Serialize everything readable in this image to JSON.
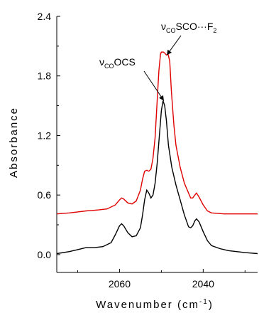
{
  "chart_data": {
    "type": "line",
    "xlabel_prefix": "Wavenumber (cm",
    "xlabel_exp": "-1",
    "xlabel_suffix": ")",
    "ylabel": "Absorbance",
    "xlim": [
      2075,
      2027
    ],
    "ylim": [
      -0.18,
      2.4
    ],
    "x_ticks": [
      2060,
      2040
    ],
    "y_ticks": [
      0.0,
      0.6,
      1.2,
      1.8,
      2.4
    ],
    "y_tick_labels": [
      "0.0",
      "0.6",
      "1.2",
      "1.8",
      "2.4"
    ],
    "x_tick_labels": [
      "2060",
      "2040"
    ],
    "series": [
      {
        "color": "#000000",
        "points": [
          [
            2075,
            0.01
          ],
          [
            2072,
            0.03
          ],
          [
            2070,
            0.05
          ],
          [
            2068,
            0.07
          ],
          [
            2066,
            0.07
          ],
          [
            2064,
            0.08
          ],
          [
            2062,
            0.12
          ],
          [
            2061,
            0.2
          ],
          [
            2060,
            0.29
          ],
          [
            2059.5,
            0.31
          ],
          [
            2059,
            0.29
          ],
          [
            2058,
            0.22
          ],
          [
            2057,
            0.18
          ],
          [
            2056,
            0.19
          ],
          [
            2055,
            0.27
          ],
          [
            2054.5,
            0.4
          ],
          [
            2054,
            0.55
          ],
          [
            2053.5,
            0.65
          ],
          [
            2053,
            0.62
          ],
          [
            2052.5,
            0.57
          ],
          [
            2052,
            0.6
          ],
          [
            2051.5,
            0.72
          ],
          [
            2051,
            0.92
          ],
          [
            2050.5,
            1.18
          ],
          [
            2050,
            1.45
          ],
          [
            2049.6,
            1.55
          ],
          [
            2049.2,
            1.5
          ],
          [
            2048.8,
            1.35
          ],
          [
            2048.3,
            1.1
          ],
          [
            2047.5,
            0.88
          ],
          [
            2046.5,
            0.7
          ],
          [
            2045.5,
            0.55
          ],
          [
            2044.5,
            0.4
          ],
          [
            2043.5,
            0.28
          ],
          [
            2043,
            0.27
          ],
          [
            2042.5,
            0.29
          ],
          [
            2042,
            0.34
          ],
          [
            2041.6,
            0.36
          ],
          [
            2041,
            0.33
          ],
          [
            2040,
            0.23
          ],
          [
            2039,
            0.14
          ],
          [
            2038,
            0.09
          ],
          [
            2036,
            0.06
          ],
          [
            2034,
            0.04
          ],
          [
            2030,
            0.02
          ],
          [
            2027,
            0.01
          ]
        ]
      },
      {
        "color": "#e00000",
        "points": [
          [
            2075,
            0.41
          ],
          [
            2072,
            0.42
          ],
          [
            2070,
            0.43
          ],
          [
            2068,
            0.44
          ],
          [
            2065,
            0.45
          ],
          [
            2063,
            0.46
          ],
          [
            2061,
            0.5
          ],
          [
            2060,
            0.55
          ],
          [
            2059.5,
            0.57
          ],
          [
            2059,
            0.56
          ],
          [
            2058,
            0.52
          ],
          [
            2057,
            0.51
          ],
          [
            2056,
            0.54
          ],
          [
            2055,
            0.65
          ],
          [
            2054.5,
            0.76
          ],
          [
            2054,
            0.84
          ],
          [
            2053.5,
            0.85
          ],
          [
            2053,
            0.84
          ],
          [
            2052.5,
            0.86
          ],
          [
            2052,
            0.97
          ],
          [
            2051.5,
            1.18
          ],
          [
            2051,
            1.55
          ],
          [
            2050.6,
            1.85
          ],
          [
            2050.2,
            2.02
          ],
          [
            2050,
            2.04
          ],
          [
            2049.5,
            2.04
          ],
          [
            2049.2,
            2.03
          ],
          [
            2048.8,
            2.01
          ],
          [
            2048.4,
            2.02
          ],
          [
            2048,
            1.95
          ],
          [
            2047.6,
            1.65
          ],
          [
            2047,
            1.3
          ],
          [
            2046.5,
            1.1
          ],
          [
            2045.5,
            0.88
          ],
          [
            2044.5,
            0.72
          ],
          [
            2043.5,
            0.62
          ],
          [
            2043,
            0.57
          ],
          [
            2042.5,
            0.57
          ],
          [
            2042,
            0.6
          ],
          [
            2041.6,
            0.62
          ],
          [
            2041,
            0.58
          ],
          [
            2040,
            0.5
          ],
          [
            2039,
            0.44
          ],
          [
            2038,
            0.42
          ],
          [
            2035,
            0.41
          ],
          [
            2030,
            0.41
          ],
          [
            2027,
            0.41
          ]
        ]
      }
    ],
    "annotations": [
      {
        "nu": "ν",
        "sub": "CO",
        "rest": "OCS",
        "target": [
          2049.4,
          1.55
        ]
      },
      {
        "nu": "ν",
        "sub": "CO",
        "rest": "SCO···F",
        "sub2": "2",
        "target": [
          2048.7,
          2.01
        ]
      }
    ]
  }
}
